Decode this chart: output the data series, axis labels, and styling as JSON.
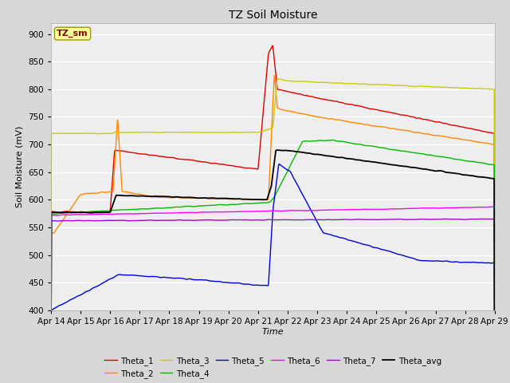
{
  "title": "TZ Soil Moisture",
  "xlabel": "Time",
  "ylabel": "Soil Moisture (mV)",
  "ylim": [
    400,
    920
  ],
  "yticks": [
    400,
    450,
    500,
    550,
    600,
    650,
    700,
    750,
    800,
    850,
    900
  ],
  "xtick_labels": [
    "Apr 14",
    "Apr 15",
    "Apr 16",
    "Apr 17",
    "Apr 18",
    "Apr 19",
    "Apr 20",
    "Apr 21",
    "Apr 22",
    "Apr 23",
    "Apr 24",
    "Apr 25",
    "Apr 26",
    "Apr 27",
    "Apr 28",
    "Apr 29"
  ],
  "colors": {
    "Theta_1": "#dd0000",
    "Theta_2": "#ff8800",
    "Theta_3": "#cccc00",
    "Theta_4": "#00bb00",
    "Theta_5": "#0000dd",
    "Theta_6": "#ff00ff",
    "Theta_7": "#aa00cc",
    "Theta_avg": "#000000"
  },
  "outer_bg": "#d8d8d8",
  "plot_bg": "#eeeeee",
  "label_box_color": "#ffff99",
  "label_box_text": "TZ_sm"
}
